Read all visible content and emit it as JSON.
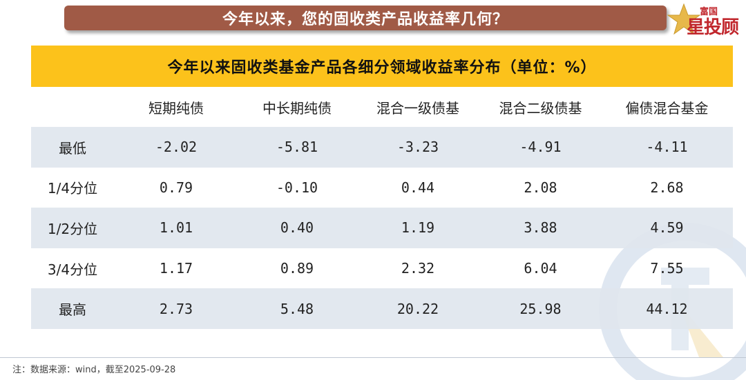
{
  "banner": {
    "title": "今年以来，您的固收类产品收益率几何？"
  },
  "logo": {
    "small": "富国",
    "big": "星投顾",
    "icon": "star-icon"
  },
  "table": {
    "title": "今年以来固收类基金产品各细分领域收益率分布（单位：%）",
    "columns": [
      "",
      "短期纯债",
      "中长期纯债",
      "混合一级债基",
      "混合二级债基",
      "偏债混合基金"
    ],
    "rows": [
      {
        "label": "最低",
        "values": [
          "-2.02",
          "-5.81",
          "-3.23",
          "-4.91",
          "-4.11"
        ]
      },
      {
        "label": "1/4分位",
        "values": [
          "0.79",
          "-0.10",
          "0.44",
          "2.08",
          "2.68"
        ]
      },
      {
        "label": "1/2分位",
        "values": [
          "1.01",
          "0.40",
          "1.19",
          "3.88",
          "4.59"
        ]
      },
      {
        "label": "3/4分位",
        "values": [
          "1.17",
          "0.89",
          "2.32",
          "6.04",
          "7.55"
        ]
      },
      {
        "label": "最高",
        "values": [
          "2.73",
          "5.48",
          "20.22",
          "25.98",
          "44.12"
        ]
      }
    ]
  },
  "footnote": "注：数据来源：wind，截至2025-09-28",
  "colors": {
    "banner": "#a05a46",
    "title_bar": "#fcc21b",
    "row_shade": "#dfe6ee",
    "logo": "#c1272d"
  }
}
